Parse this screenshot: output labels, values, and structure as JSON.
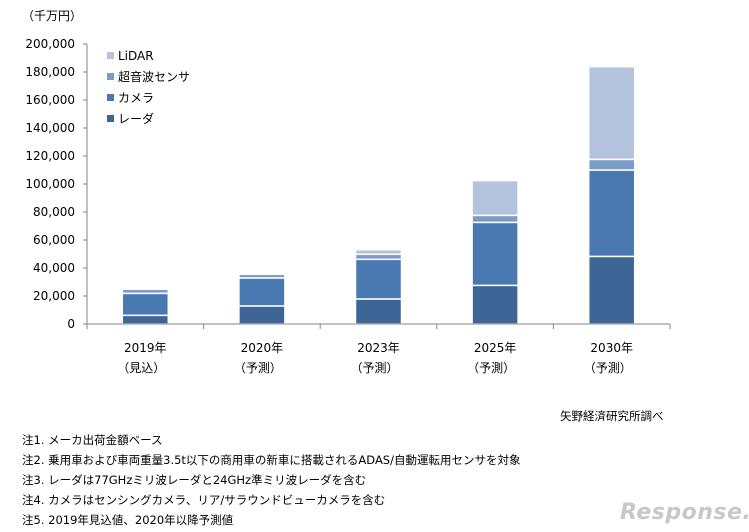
{
  "chart_data": {
    "type": "bar",
    "stacked": true,
    "unit_label": "（千万円）",
    "categories": [
      "2019年",
      "2020年",
      "2023年",
      "2025年",
      "2030年"
    ],
    "category_sublabels": [
      "（見込）",
      "（予測）",
      "（予測）",
      "（予測）",
      "（予測）"
    ],
    "ylim": [
      0,
      200000
    ],
    "yticks": [
      "0",
      "20,000",
      "40,000",
      "60,000",
      "80,000",
      "100,000",
      "120,000",
      "140,000",
      "160,000",
      "180,000",
      "200,000"
    ],
    "legend_position": "top-left",
    "grid": false,
    "series": [
      {
        "name": "レーダ",
        "color": "#3d6595",
        "values": [
          6200,
          12900,
          17900,
          27600,
          48300
        ]
      },
      {
        "name": "カメラ",
        "color": "#4a78b0",
        "values": [
          15700,
          20000,
          28300,
          45000,
          61700
        ]
      },
      {
        "name": "超音波センサ",
        "color": "#7d9bc8",
        "values": [
          2900,
          2600,
          3600,
          5000,
          7600
        ]
      },
      {
        "name": "LiDAR",
        "color": "#b4c3dd",
        "values": [
          0,
          0,
          3300,
          24800,
          66200
        ]
      }
    ]
  },
  "source": "矢野経済研究所調べ",
  "notes": [
    "注1. メーカ出荷金額ベース",
    "注2. 乗用車および車両重量3.5t以下の商用車の新車に搭載されるADAS/自動運転用センサを対象",
    "注3. レーダは77GHzミリ波レーダと24GHz準ミリ波レーダを含む",
    "注4. カメラはセンシングカメラ、リア/サラウンドビューカメラを含む",
    "注5. 2019年見込値、2020年以降予測値"
  ],
  "watermark": "Response."
}
